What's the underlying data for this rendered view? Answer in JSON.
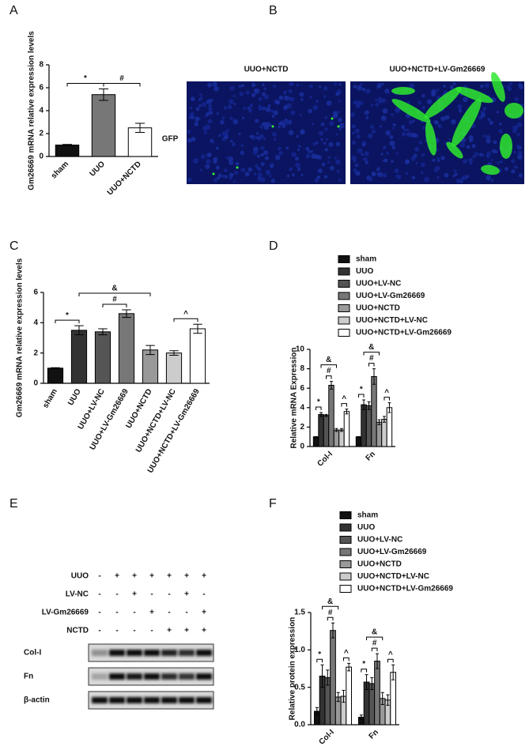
{
  "panel_labels": [
    "A",
    "B",
    "C",
    "D",
    "E",
    "F"
  ],
  "image_b": {
    "column_titles": [
      "UUO+NCTD",
      "UUO+NCTD+LV-Gm26669"
    ],
    "row_label": "GFP"
  },
  "blot_e": {
    "conditions": [
      {
        "label": "UUO",
        "signs": [
          "-",
          "+",
          "+",
          "+",
          "+",
          "+",
          "+"
        ]
      },
      {
        "label": "LV-NC",
        "signs": [
          "-",
          "-",
          "+",
          "-",
          "-",
          "+",
          "-"
        ]
      },
      {
        "label": "LV-Gm26669",
        "signs": [
          "-",
          "-",
          "-",
          "+",
          "-",
          "-",
          "+"
        ]
      },
      {
        "label": "NCTD",
        "signs": [
          "-",
          "-",
          "-",
          "-",
          "+",
          "+",
          "+"
        ]
      }
    ],
    "blots": [
      "Col-I",
      "Fn",
      "β-actin"
    ]
  },
  "chart_data": [
    {
      "type": "bar",
      "y_label": "Gm26669 mRNA relative expression levels",
      "categories": [
        "sham",
        "UUO",
        "UUO+NCTD"
      ],
      "values": [
        1.0,
        5.4,
        2.5
      ],
      "errors": [
        0.05,
        0.5,
        0.4
      ],
      "colors": [
        "#111111",
        "#777777",
        "#ffffff"
      ],
      "ylim": [
        0,
        8
      ],
      "yticks": [
        0,
        2,
        4,
        6,
        8
      ],
      "annotations": [
        "*",
        "#"
      ]
    },
    {
      "type": "bar",
      "y_label": "Gm26669 mRNA relative expression levels",
      "categories": [
        "sham",
        "UUO",
        "UUO+LV-NC",
        "UUO+LV-Gm26669",
        "UUO+NCTD",
        "UUO+NCTD+LV-NC",
        "UUO+NCTD+LV-Gm26669"
      ],
      "values": [
        1.0,
        3.5,
        3.4,
        4.6,
        2.2,
        2.0,
        3.6
      ],
      "errors": [
        0.03,
        0.3,
        0.2,
        0.25,
        0.3,
        0.15,
        0.3
      ],
      "colors": [
        "#111111",
        "#333333",
        "#555555",
        "#777777",
        "#999999",
        "#cccccc",
        "#ffffff"
      ],
      "ylim": [
        0,
        6
      ],
      "yticks": [
        0,
        2,
        4,
        6
      ],
      "annotations": [
        "*",
        "#",
        "&",
        "^"
      ]
    },
    {
      "type": "bar",
      "y_label": "Relative mRNA Expression",
      "categories": [
        "Col-I",
        "Fn"
      ],
      "series": [
        {
          "name": "sham",
          "color": "#111111",
          "values": [
            1.0,
            1.0
          ],
          "errors": [
            0.03,
            0.03
          ]
        },
        {
          "name": "UUO",
          "color": "#333333",
          "values": [
            3.3,
            4.3
          ],
          "errors": [
            0.2,
            0.5
          ]
        },
        {
          "name": "UUO+LV-NC",
          "color": "#555555",
          "values": [
            3.2,
            4.2
          ],
          "errors": [
            0.1,
            0.4
          ]
        },
        {
          "name": "UUO+LV-Gm26669",
          "color": "#777777",
          "values": [
            6.3,
            7.2
          ],
          "errors": [
            0.4,
            0.8
          ]
        },
        {
          "name": "UUO+NCTD",
          "color": "#999999",
          "values": [
            1.7,
            2.5
          ],
          "errors": [
            0.15,
            0.25
          ]
        },
        {
          "name": "UUO+NCTD+LV-NC",
          "color": "#cccccc",
          "values": [
            1.7,
            2.8
          ],
          "errors": [
            0.15,
            0.3
          ]
        },
        {
          "name": "UUO+NCTD+LV-Gm26669",
          "color": "#ffffff",
          "values": [
            3.6,
            4.0
          ],
          "errors": [
            0.25,
            0.5
          ]
        }
      ],
      "ylim": [
        0,
        10
      ],
      "yticks": [
        0,
        2,
        4,
        6,
        8,
        10
      ],
      "annotations": [
        "*",
        "#",
        "&",
        "^"
      ]
    },
    {
      "type": "bar",
      "y_label": "Relative protein expression",
      "categories": [
        "Col-I",
        "Fn"
      ],
      "series": [
        {
          "name": "sham",
          "color": "#111111",
          "values": [
            0.18,
            0.1
          ],
          "errors": [
            0.05,
            0.03
          ]
        },
        {
          "name": "UUO",
          "color": "#333333",
          "values": [
            0.65,
            0.57
          ],
          "errors": [
            0.15,
            0.1
          ]
        },
        {
          "name": "UUO+LV-NC",
          "color": "#555555",
          "values": [
            0.63,
            0.55
          ],
          "errors": [
            0.1,
            0.08
          ]
        },
        {
          "name": "UUO+LV-Gm26669",
          "color": "#777777",
          "values": [
            1.26,
            0.85
          ],
          "errors": [
            0.1,
            0.1
          ]
        },
        {
          "name": "UUO+NCTD",
          "color": "#999999",
          "values": [
            0.37,
            0.35
          ],
          "errors": [
            0.06,
            0.08
          ]
        },
        {
          "name": "UUO+NCTD+LV-NC",
          "color": "#cccccc",
          "values": [
            0.38,
            0.33
          ],
          "errors": [
            0.08,
            0.07
          ]
        },
        {
          "name": "UUO+NCTD+LV-Gm26669",
          "color": "#ffffff",
          "values": [
            0.77,
            0.7
          ],
          "errors": [
            0.05,
            0.1
          ]
        }
      ],
      "ylim": [
        0,
        1.5
      ],
      "yticks": [
        {
          "value": 0,
          "label": "0.0"
        },
        {
          "value": 0.5,
          "label": "0.5"
        },
        {
          "value": 1,
          "label": "1.0"
        },
        {
          "value": 1.5,
          "label": "1.5"
        }
      ],
      "annotations": [
        "*",
        "#",
        "&",
        "^"
      ]
    }
  ]
}
